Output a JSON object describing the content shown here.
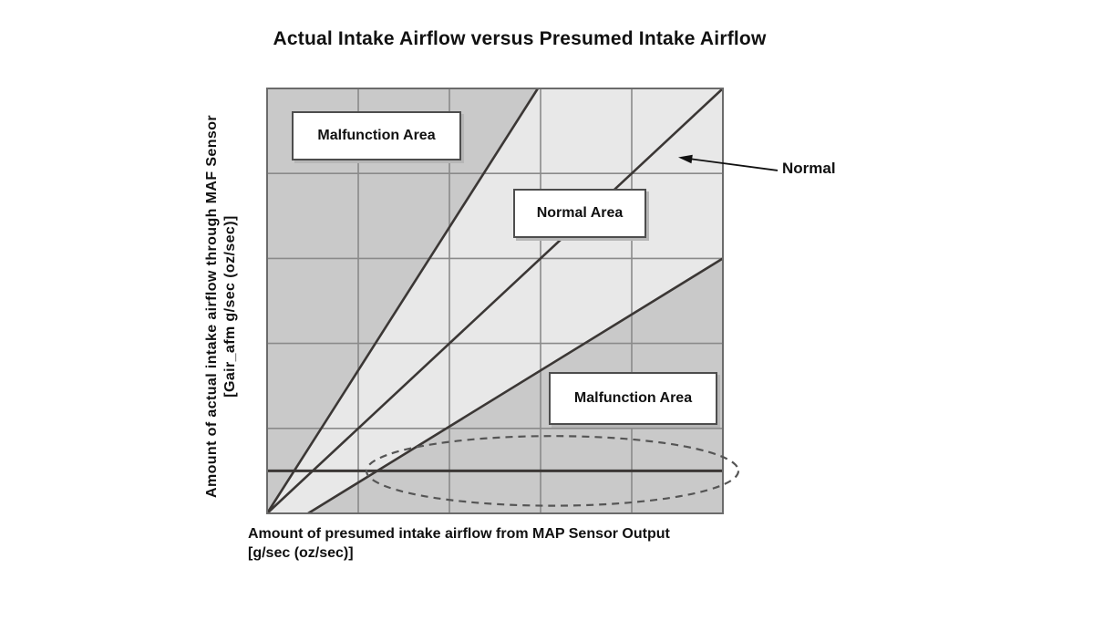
{
  "title": "Actual Intake Airflow versus Presumed Intake Airflow",
  "axes": {
    "y_label_line1": "Amount of actual intake airflow through MAF Sensor",
    "y_label_line2": "[Gair_afm g/sec (oz/sec)]",
    "x_label_line1": "Amount of presumed intake airflow from MAP Sensor Output",
    "x_label_line2": "[g/sec (oz/sec)]"
  },
  "annotations": {
    "malfunction_top": "Malfunction Area",
    "normal_area": "Normal Area",
    "malfunction_bottom": "Malfunction Area",
    "normal_line_label": "Normal"
  },
  "colors": {
    "background": "#ffffff",
    "area_light": "#e8e8e8",
    "area_dark": "#c9c9c9",
    "grid_line": "#8a8a8a",
    "plot_border": "#6b6b6b",
    "boundary_line": "#3b3735",
    "ellipse_dash": "#555555",
    "arrow": "#111111",
    "text": "#111111"
  },
  "chart_data": {
    "type": "line",
    "title": "Actual Intake Airflow versus Presumed Intake Airflow",
    "xlabel": "Amount of presumed intake airflow from MAP Sensor Output [g/sec (oz/sec)]",
    "ylabel": "Amount of actual intake airflow through MAF Sensor [Gair_afm g/sec (oz/sec)]",
    "xlim": [
      0,
      1
    ],
    "ylim": [
      0,
      1
    ],
    "axis_tick_labels": "none (qualitative diagram, unlabeled 5x5 grid)",
    "legend_position": "none",
    "grid": {
      "on": true,
      "x_lines": [
        0.2,
        0.4,
        0.6,
        0.8
      ],
      "y_lines": [
        0.2,
        0.4,
        0.6,
        0.8
      ],
      "thick_horizontal_line_y": 0.1
    },
    "series": [
      {
        "name": "upper-malfunction-boundary",
        "points": [
          [
            0,
            0
          ],
          [
            0.594,
            1.0
          ]
        ]
      },
      {
        "name": "normal-line",
        "label": "Normal",
        "points": [
          [
            0,
            0
          ],
          [
            1.0,
            1.0
          ]
        ]
      },
      {
        "name": "lower-malfunction-boundary",
        "points": [
          [
            0.09,
            0
          ],
          [
            1.0,
            0.6
          ]
        ]
      }
    ],
    "regions": [
      {
        "name": "malfunction-area-upper-left",
        "tone": "dark",
        "polygon": [
          [
            0,
            0
          ],
          [
            0.594,
            1.0
          ],
          [
            0,
            1.0
          ]
        ]
      },
      {
        "name": "normal-area-band",
        "tone": "light",
        "polygon": null
      },
      {
        "name": "malfunction-area-lower-right",
        "tone": "dark",
        "polygon": [
          [
            0.09,
            0
          ],
          [
            1.0,
            0.6
          ],
          [
            1.0,
            0
          ]
        ]
      }
    ],
    "ellipse": {
      "cx": 0.626,
      "cy": 0.1,
      "rx": 0.408,
      "ry": 0.082,
      "style": "dashed"
    },
    "arrow": {
      "from": [
        1.12,
        0.807
      ],
      "to": [
        0.902,
        0.838
      ]
    }
  }
}
